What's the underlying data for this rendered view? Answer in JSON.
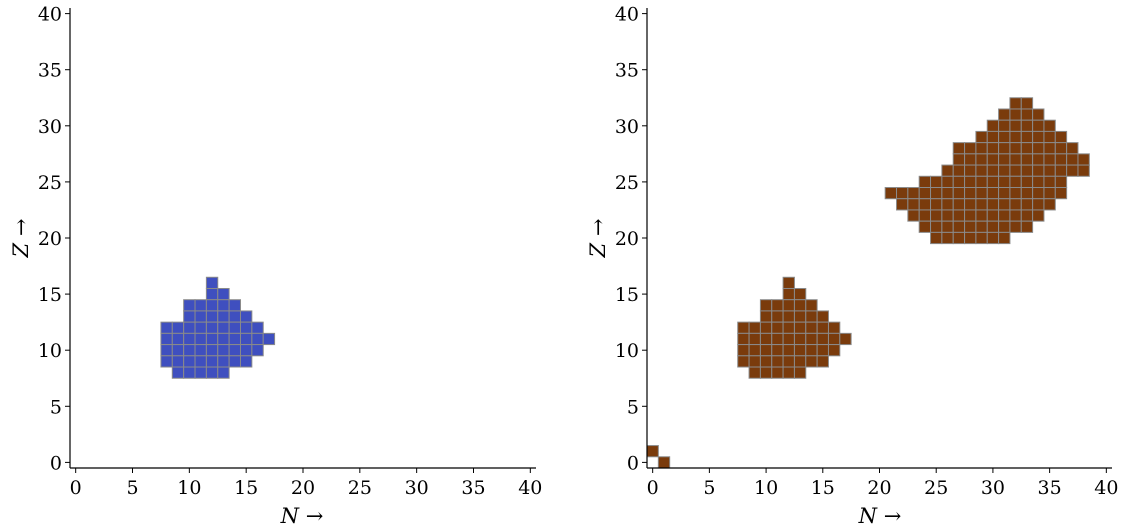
{
  "chart_data": [
    {
      "type": "heatmap",
      "xlabel": "N →",
      "ylabel": "Z →",
      "xlim": [
        -0.5,
        40.5
      ],
      "ylim": [
        -0.5,
        40.5
      ],
      "xticks": [
        0,
        5,
        10,
        15,
        20,
        25,
        30,
        35,
        40
      ],
      "yticks": [
        0,
        5,
        10,
        15,
        20,
        25,
        30,
        35,
        40
      ],
      "grid": false,
      "cell_color": "#3f4fbf",
      "cell_edge_color": "#8a8a8a",
      "rows": [
        {
          "z": 16,
          "n": [
            [
              12,
              12
            ]
          ]
        },
        {
          "z": 15,
          "n": [
            [
              12,
              13
            ]
          ]
        },
        {
          "z": 14,
          "n": [
            [
              10,
              14
            ]
          ]
        },
        {
          "z": 13,
          "n": [
            [
              10,
              15
            ]
          ]
        },
        {
          "z": 12,
          "n": [
            [
              8,
              16
            ]
          ]
        },
        {
          "z": 11,
          "n": [
            [
              8,
              17
            ]
          ]
        },
        {
          "z": 10,
          "n": [
            [
              8,
              16
            ]
          ]
        },
        {
          "z": 9,
          "n": [
            [
              8,
              15
            ]
          ]
        },
        {
          "z": 8,
          "n": [
            [
              9,
              13
            ]
          ]
        }
      ]
    },
    {
      "type": "heatmap",
      "xlabel": "N →",
      "ylabel": "Z →",
      "xlim": [
        -0.5,
        40.5
      ],
      "ylim": [
        -0.5,
        40.5
      ],
      "xticks": [
        0,
        5,
        10,
        15,
        20,
        25,
        30,
        35,
        40
      ],
      "yticks": [
        0,
        5,
        10,
        15,
        20,
        25,
        30,
        35,
        40
      ],
      "grid": false,
      "cell_color": "#7a3b0c",
      "cell_edge_color": "#8a8a8a",
      "rows": [
        {
          "z": 32,
          "n": [
            [
              32,
              33
            ]
          ]
        },
        {
          "z": 31,
          "n": [
            [
              31,
              34
            ]
          ]
        },
        {
          "z": 30,
          "n": [
            [
              30,
              35
            ]
          ]
        },
        {
          "z": 29,
          "n": [
            [
              29,
              36
            ]
          ]
        },
        {
          "z": 28,
          "n": [
            [
              27,
              37
            ]
          ]
        },
        {
          "z": 27,
          "n": [
            [
              27,
              38
            ]
          ]
        },
        {
          "z": 26,
          "n": [
            [
              26,
              38
            ]
          ]
        },
        {
          "z": 25,
          "n": [
            [
              24,
              36
            ]
          ]
        },
        {
          "z": 24,
          "n": [
            [
              21,
              36
            ]
          ]
        },
        {
          "z": 23,
          "n": [
            [
              22,
              35
            ]
          ]
        },
        {
          "z": 22,
          "n": [
            [
              23,
              34
            ]
          ]
        },
        {
          "z": 21,
          "n": [
            [
              24,
              33
            ]
          ]
        },
        {
          "z": 20,
          "n": [
            [
              25,
              31
            ]
          ]
        },
        {
          "z": 16,
          "n": [
            [
              12,
              12
            ]
          ]
        },
        {
          "z": 15,
          "n": [
            [
              12,
              13
            ]
          ]
        },
        {
          "z": 14,
          "n": [
            [
              10,
              14
            ]
          ]
        },
        {
          "z": 13,
          "n": [
            [
              10,
              15
            ]
          ]
        },
        {
          "z": 12,
          "n": [
            [
              8,
              16
            ]
          ]
        },
        {
          "z": 11,
          "n": [
            [
              8,
              17
            ]
          ]
        },
        {
          "z": 10,
          "n": [
            [
              8,
              16
            ]
          ]
        },
        {
          "z": 9,
          "n": [
            [
              8,
              15
            ]
          ]
        },
        {
          "z": 8,
          "n": [
            [
              9,
              13
            ]
          ]
        },
        {
          "z": 1,
          "n": [
            [
              0,
              0
            ]
          ]
        },
        {
          "z": 0,
          "n": [
            [
              1,
              1
            ]
          ]
        }
      ]
    }
  ]
}
